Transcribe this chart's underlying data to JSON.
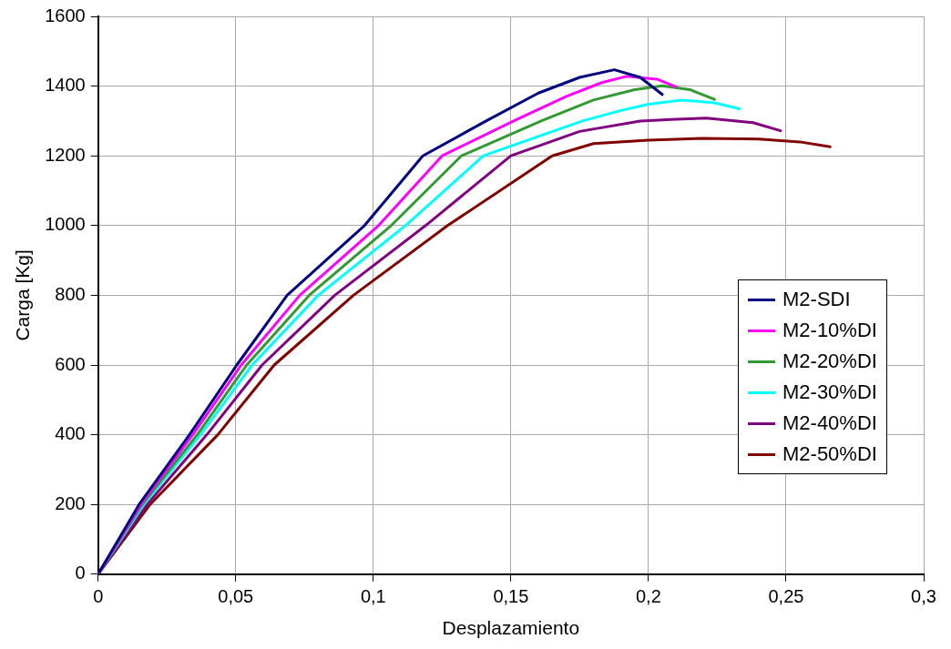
{
  "chart_data": {
    "type": "line",
    "xlabel": "Desplazamiento",
    "ylabel": "Carga [Kg]",
    "xlim": [
      0,
      0.3
    ],
    "ylim": [
      0,
      1600
    ],
    "xticks": [
      0,
      {
        "value": 0.05,
        "label": "0,05"
      },
      {
        "value": 0.1,
        "label": "0,1"
      },
      {
        "value": 0.15,
        "label": "0,15"
      },
      {
        "value": 0.2,
        "label": "0,2"
      },
      {
        "value": 0.25,
        "label": "0,25"
      },
      {
        "value": 0.3,
        "label": "0,3"
      }
    ],
    "yticks": [
      0,
      200,
      400,
      600,
      800,
      1000,
      1200,
      1400,
      1600
    ],
    "grid": true,
    "legend": "right",
    "marker": "none",
    "line_style": "solid",
    "series": [
      {
        "name": "M2-SDI",
        "color": "#000080",
        "x": [
          0,
          0.0149,
          0.0332,
          0.0504,
          0.0687,
          0.0968,
          0.118,
          0.141,
          0.16,
          0.175,
          0.1876,
          0.197,
          0.205
        ],
        "values": [
          0,
          200,
          400,
          600,
          800,
          1000,
          1200,
          1300,
          1380,
          1425,
          1447,
          1425,
          1376
        ]
      },
      {
        "name": "M2-10%DI",
        "color": "#ff00ff",
        "x": [
          0,
          0.0155,
          0.0344,
          0.052,
          0.0733,
          0.1019,
          0.125,
          0.151,
          0.17,
          0.183,
          0.192,
          0.203,
          0.21
        ],
        "values": [
          0,
          200,
          400,
          600,
          800,
          1000,
          1200,
          1300,
          1370,
          1410,
          1428,
          1420,
          1398
        ]
      },
      {
        "name": "M2-20%DI",
        "color": "#339933",
        "x": [
          0,
          0.016,
          0.036,
          0.054,
          0.0767,
          0.1065,
          0.132,
          0.161,
          0.18,
          0.195,
          0.205,
          0.215,
          0.224
        ],
        "values": [
          0,
          200,
          400,
          600,
          800,
          1000,
          1200,
          1300,
          1360,
          1390,
          1401,
          1390,
          1362
        ]
      },
      {
        "name": "M2-30%DI",
        "color": "#00ffff",
        "x": [
          0,
          0.0166,
          0.0372,
          0.056,
          0.08,
          0.1117,
          0.14,
          0.176,
          0.19,
          0.2,
          0.212,
          0.224,
          0.233
        ],
        "values": [
          0,
          200,
          400,
          600,
          800,
          1000,
          1200,
          1300,
          1330,
          1348,
          1360,
          1352,
          1335
        ]
      },
      {
        "name": "M2-40%DI",
        "color": "#800080",
        "x": [
          0,
          0.0178,
          0.0395,
          0.0596,
          0.086,
          0.119,
          0.15,
          0.175,
          0.197,
          0.21,
          0.221,
          0.238,
          0.248
        ],
        "values": [
          0,
          200,
          400,
          600,
          800,
          1000,
          1200,
          1270,
          1300,
          1305,
          1308,
          1295,
          1272
        ]
      },
      {
        "name": "M2-50%DI",
        "color": "#800000",
        "x": [
          0,
          0.0189,
          0.0435,
          0.064,
          0.0928,
          0.127,
          0.165,
          0.18,
          0.2,
          0.219,
          0.24,
          0.255,
          0.266
        ],
        "values": [
          0,
          200,
          400,
          600,
          800,
          1000,
          1200,
          1235,
          1245,
          1250,
          1248,
          1240,
          1226
        ]
      }
    ]
  }
}
